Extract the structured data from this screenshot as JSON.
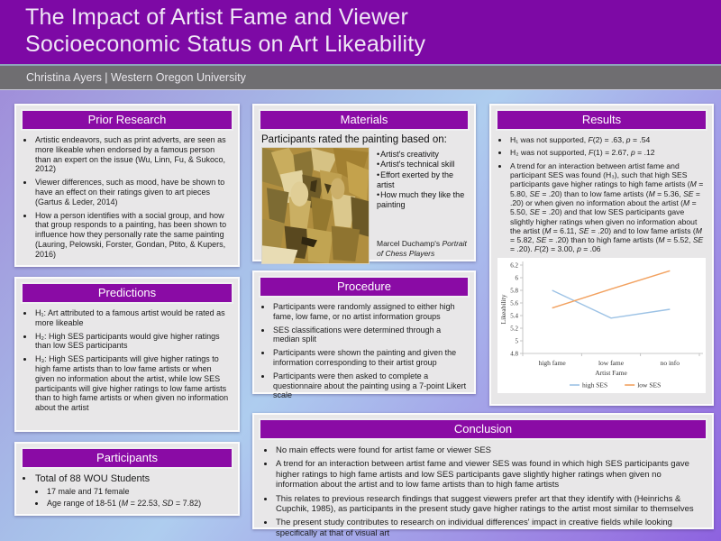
{
  "header": {
    "title_line1": "The Impact of Artist Fame and Viewer",
    "title_line2": "Socioeconomic Status on Art Likeability",
    "byline": "Christina Ayers | Western Oregon University"
  },
  "colors": {
    "header_purple": "#7d09a5",
    "panel_purple": "#8a0ba5",
    "high_ses_line": "#9cc2e5",
    "low_ses_line": "#f2a15f"
  },
  "sections": {
    "prior_research": {
      "title": "Prior Research",
      "bullets": [
        "Artistic endeavors, such as print adverts, are seen as more likeable when endorsed by a famous person than an expert on the issue (Wu, Linn, Fu, & Sukoco, 2012)",
        "Viewer differences, such as mood, have be shown to have an effect on their ratings given to art pieces (Gartus & Leder, 2014)",
        "How a person identifies with a social group, and how that group responds to a painting, has been shown to influence how they personally rate the same painting (Lauring, Pelowski, Forster, Gondan, Ptito, & Kupers, 2016)"
      ]
    },
    "predictions": {
      "title": "Predictions",
      "bullets": [
        "H₁: Art attributed to a famous artist would be rated as more likeable",
        "H₂: High SES participants would give higher ratings than low SES participants",
        "H₃: High SES participants will give higher ratings to high fame artists than to low fame artists or when given no information about the artist, while low SES participants will give higher ratings to low fame artists than to high fame artists or when given no information about the artist"
      ]
    },
    "participants": {
      "title": "Participants",
      "bullets": [
        {
          "text": "Total of 88 WOU Students",
          "children": [
            "17 male and 71 female",
            "Age range of 18-51 (*M* = 22.53, *SD* = 7.82)"
          ]
        }
      ]
    },
    "materials": {
      "title": "Materials",
      "intro": "Participants rated the painting based on:",
      "criteria": [
        "Artist's creativity",
        "Artist's technical skill",
        "Effort exerted by the artist",
        "How much they like the painting"
      ],
      "caption": "Marcel Duchamp's *Portrait of Chess Players*"
    },
    "procedure": {
      "title": "Procedure",
      "bullets": [
        "Participants were randomly assigned to either high fame, low fame, or no artist information groups",
        "SES classifications were determined through a median split",
        "Participants were shown the painting and given the information corresponding to their artist group",
        "Participants were then asked to complete a questionnaire about the painting using a 7-point Likert scale"
      ]
    },
    "results": {
      "title": "Results",
      "bullets": [
        "H₁ was not supported, *F*(2) = .63, *p* = .54",
        "H₂ was not supported, *F*(1) = 2.67, *p* = .12",
        "A trend for an interaction between artist fame and participant SES was found (H₃), such that high SES participants gave higher ratings to high fame artists (*M* = 5.80, *SE* = .20) than to low fame artists (*M* = 5.36, *SE* = .20) or when given no information about the artist (*M* = 5.50, *SE* = .20) and that low SES participants gave slightly higher ratings when given no information about the artist (*M* = 6.11, *SE* = .20) and to low fame artists (*M* = 5.82, *SE* = .20) than to high fame artists (*M* = 5.52, *SE* = .20). *F*(2) = 3.00, *p* = .06"
      ]
    },
    "conclusion": {
      "title": "Conclusion",
      "bullets": [
        "No main effects were found for artist fame or viewer SES",
        "A trend for an interaction between artist fame and viewer SES was found in which high SES participants gave higher ratings to high fame artists and low SES participants gave slightly higher ratings when given no information about the artist and to low fame artists than to high fame artists",
        "This relates to previous research findings that suggest viewers prefer art that they identify with (Heinrichs & Cupchik, 1985), as participants in the present study gave higher ratings to the artist most similar to themselves",
        "The present study contributes to research on individual differences' impact in creative fields while looking specifically at that of visual art"
      ]
    }
  },
  "chart_data": {
    "type": "line",
    "categories": [
      "high fame",
      "low fame",
      "no info"
    ],
    "series": [
      {
        "name": "high SES",
        "values": [
          5.8,
          5.36,
          5.5
        ],
        "color": "#9cc2e5"
      },
      {
        "name": "low SES",
        "values": [
          5.52,
          5.82,
          6.11
        ],
        "color": "#f2a15f"
      }
    ],
    "title": "",
    "xlabel": "Artist Fame",
    "ylabel": "Likeability",
    "ylim": [
      4.8,
      6.2
    ],
    "ytick_step": 0.2,
    "legend_position": "bottom",
    "grid": false
  }
}
